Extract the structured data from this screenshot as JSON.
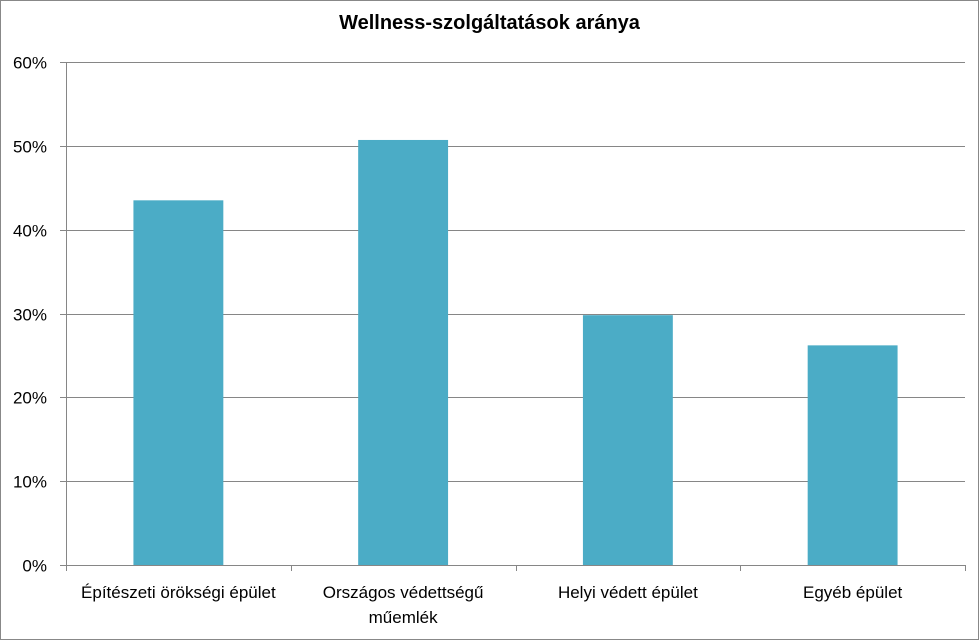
{
  "chart_data": {
    "type": "bar",
    "title": "Wellness-szolgáltatások aránya",
    "xlabel": "",
    "ylabel": "",
    "categories": [
      [
        "Építészeti örökségi épület"
      ],
      [
        "Országos védettségű",
        "műemlék"
      ],
      [
        "Helyi védett épület"
      ],
      [
        "Egyéb épület"
      ]
    ],
    "values": [
      0.435,
      0.507,
      0.298,
      0.262
    ],
    "ylim": [
      0,
      0.6
    ],
    "yticks": [
      0,
      0.1,
      0.2,
      0.3,
      0.4,
      0.5,
      0.6
    ],
    "ytick_labels": [
      "0%",
      "10%",
      "20%",
      "30%",
      "40%",
      "50%",
      "60%"
    ],
    "grid": true,
    "legend": "none",
    "bar_color": "#4BACC6",
    "grid_color": "#868686"
  }
}
